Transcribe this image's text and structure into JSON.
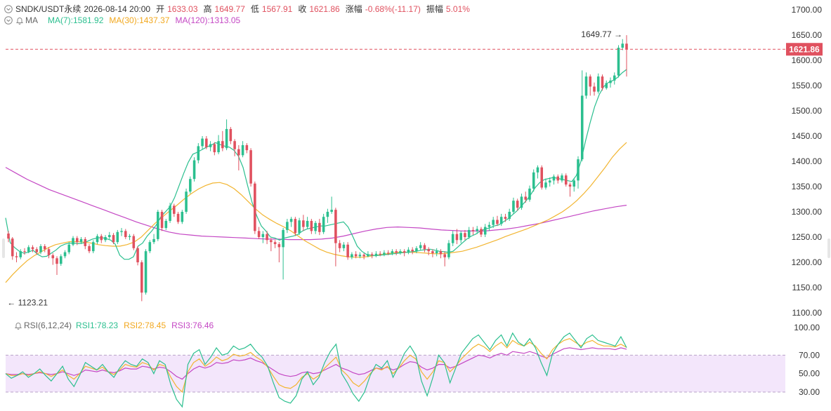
{
  "header": {
    "symbol": "SNDK/USDT永续",
    "datetime": "2026-08-14 20:00",
    "open_label": "开",
    "open": "1633.03",
    "high_label": "高",
    "high": "1649.77",
    "low_label": "低",
    "low": "1567.91",
    "close_label": "收",
    "close": "1621.86",
    "change_label": "涨幅",
    "change": "-0.68%(-11.17)",
    "amp_label": "振幅",
    "amp": "5.01%"
  },
  "ma_legend": {
    "name": "MA",
    "ma7": "MA(7):1581.92",
    "ma30": "MA(30):1437.37",
    "ma120": "MA(120):1313.05"
  },
  "rsi_legend": {
    "name": "RSI(6,12,24)",
    "rsi1": "RSI1:78.23",
    "rsi2": "RSI2:78.45",
    "rsi3": "RSI3:76.46"
  },
  "markers": {
    "high_marker": "1649.77 →",
    "low_marker": "← 1123.21",
    "last_price": "1621.86"
  },
  "colors": {
    "up": "#2bbf8f",
    "down": "#e0515f",
    "ma7": "#2bbf8f",
    "ma30": "#f2b531",
    "ma120": "#c447c4",
    "rsi1": "#2bbf8f",
    "rsi2": "#f2b531",
    "rsi3": "#c447c4",
    "rsi_band": "#f3e6fb"
  },
  "chart_data": {
    "type": "candlestick",
    "price_axis": {
      "min": 1100,
      "max": 1700,
      "ticks": [
        "1700.00",
        "1650.00",
        "1600.00",
        "1550.00",
        "1500.00",
        "1450.00",
        "1400.00",
        "1350.00",
        "1300.00",
        "1250.00",
        "1200.00",
        "1150.00",
        "1100.00"
      ]
    },
    "rsi_axis": {
      "min": 30,
      "max": 100,
      "ticks": [
        "100.00",
        "70.00",
        "50.00",
        "30.00"
      ],
      "band": [
        30,
        70
      ]
    },
    "last_price": 1621.86,
    "high_point": 1649.77,
    "low_point": 1123.21,
    "candles": [
      [
        1257,
        1247,
        1262,
        1240
      ],
      [
        1247,
        1212,
        1250,
        1205
      ],
      [
        1212,
        1210,
        1220,
        1200
      ],
      [
        1210,
        1222,
        1226,
        1206
      ],
      [
        1222,
        1221,
        1228,
        1215
      ],
      [
        1221,
        1230,
        1234,
        1218
      ],
      [
        1230,
        1226,
        1234,
        1220
      ],
      [
        1226,
        1220,
        1230,
        1215
      ],
      [
        1220,
        1232,
        1236,
        1216
      ],
      [
        1232,
        1226,
        1236,
        1220
      ],
      [
        1226,
        1214,
        1230,
        1208
      ],
      [
        1214,
        1208,
        1218,
        1195
      ],
      [
        1208,
        1197,
        1212,
        1175
      ],
      [
        1197,
        1212,
        1216,
        1193
      ],
      [
        1212,
        1220,
        1224,
        1208
      ],
      [
        1220,
        1235,
        1240,
        1216
      ],
      [
        1235,
        1248,
        1252,
        1232
      ],
      [
        1248,
        1240,
        1252,
        1234
      ],
      [
        1240,
        1246,
        1250,
        1236
      ],
      [
        1246,
        1232,
        1250,
        1226
      ],
      [
        1232,
        1222,
        1236,
        1218
      ],
      [
        1222,
        1240,
        1244,
        1218
      ],
      [
        1240,
        1252,
        1256,
        1236
      ],
      [
        1252,
        1244,
        1256,
        1238
      ],
      [
        1244,
        1250,
        1254,
        1240
      ],
      [
        1250,
        1254,
        1260,
        1246
      ],
      [
        1254,
        1240,
        1258,
        1236
      ],
      [
        1240,
        1260,
        1264,
        1236
      ],
      [
        1260,
        1262,
        1268,
        1252
      ],
      [
        1262,
        1250,
        1266,
        1246
      ],
      [
        1250,
        1252,
        1256,
        1244
      ],
      [
        1252,
        1228,
        1256,
        1224
      ],
      [
        1228,
        1200,
        1232,
        1194
      ],
      [
        1200,
        1140,
        1204,
        1123
      ],
      [
        1140,
        1222,
        1226,
        1136
      ],
      [
        1222,
        1240,
        1244,
        1218
      ],
      [
        1240,
        1246,
        1256,
        1236
      ],
      [
        1246,
        1300,
        1304,
        1242
      ],
      [
        1300,
        1268,
        1304,
        1262
      ],
      [
        1268,
        1282,
        1286,
        1264
      ],
      [
        1282,
        1312,
        1318,
        1278
      ],
      [
        1312,
        1296,
        1316,
        1290
      ],
      [
        1296,
        1280,
        1300,
        1276
      ],
      [
        1280,
        1300,
        1304,
        1276
      ],
      [
        1300,
        1340,
        1346,
        1296
      ],
      [
        1340,
        1365,
        1370,
        1336
      ],
      [
        1365,
        1402,
        1408,
        1360
      ],
      [
        1402,
        1430,
        1436,
        1396
      ],
      [
        1430,
        1445,
        1450,
        1424
      ],
      [
        1445,
        1428,
        1450,
        1424
      ],
      [
        1428,
        1434,
        1440,
        1420
      ],
      [
        1434,
        1418,
        1438,
        1412
      ],
      [
        1418,
        1440,
        1452,
        1414
      ],
      [
        1440,
        1426,
        1460,
        1420
      ],
      [
        1426,
        1464,
        1483,
        1422
      ],
      [
        1464,
        1440,
        1468,
        1434
      ],
      [
        1440,
        1424,
        1444,
        1410
      ],
      [
        1424,
        1412,
        1432,
        1382
      ],
      [
        1412,
        1432,
        1440,
        1408
      ],
      [
        1432,
        1422,
        1436,
        1416
      ],
      [
        1422,
        1356,
        1426,
        1350
      ],
      [
        1356,
        1262,
        1360,
        1256
      ],
      [
        1262,
        1250,
        1270,
        1246
      ],
      [
        1250,
        1256,
        1262,
        1238
      ],
      [
        1256,
        1244,
        1262,
        1236
      ],
      [
        1244,
        1240,
        1248,
        1222
      ],
      [
        1240,
        1236,
        1244,
        1228
      ],
      [
        1236,
        1230,
        1240,
        1200
      ],
      [
        1230,
        1264,
        1268,
        1166
      ],
      [
        1264,
        1280,
        1286,
        1258
      ],
      [
        1280,
        1286,
        1290,
        1270
      ],
      [
        1286,
        1258,
        1290,
        1252
      ],
      [
        1258,
        1283,
        1288,
        1254
      ],
      [
        1283,
        1270,
        1294,
        1262
      ],
      [
        1270,
        1282,
        1290,
        1266
      ],
      [
        1282,
        1262,
        1286,
        1256
      ],
      [
        1262,
        1278,
        1282,
        1256
      ],
      [
        1278,
        1260,
        1286,
        1254
      ],
      [
        1260,
        1290,
        1296,
        1256
      ],
      [
        1290,
        1300,
        1306,
        1278
      ],
      [
        1300,
        1304,
        1330,
        1296
      ],
      [
        1304,
        1238,
        1308,
        1192
      ],
      [
        1238,
        1228,
        1244,
        1220
      ],
      [
        1228,
        1235,
        1240,
        1222
      ],
      [
        1235,
        1210,
        1240,
        1205
      ],
      [
        1210,
        1216,
        1220,
        1206
      ],
      [
        1216,
        1212,
        1222,
        1208
      ],
      [
        1212,
        1215,
        1220,
        1208
      ],
      [
        1215,
        1212,
        1218,
        1206
      ],
      [
        1212,
        1216,
        1222,
        1210
      ],
      [
        1216,
        1214,
        1220,
        1208
      ],
      [
        1214,
        1217,
        1222,
        1210
      ],
      [
        1217,
        1216,
        1222,
        1212
      ],
      [
        1216,
        1219,
        1224,
        1212
      ],
      [
        1219,
        1218,
        1224,
        1214
      ],
      [
        1218,
        1222,
        1226,
        1214
      ],
      [
        1222,
        1219,
        1226,
        1214
      ],
      [
        1219,
        1222,
        1226,
        1215
      ],
      [
        1222,
        1219,
        1226,
        1212
      ],
      [
        1219,
        1225,
        1230,
        1216
      ],
      [
        1225,
        1222,
        1230,
        1216
      ],
      [
        1222,
        1228,
        1232,
        1218
      ],
      [
        1228,
        1234,
        1240,
        1224
      ],
      [
        1234,
        1226,
        1238,
        1220
      ],
      [
        1226,
        1222,
        1230,
        1214
      ],
      [
        1222,
        1218,
        1226,
        1210
      ],
      [
        1218,
        1222,
        1228,
        1212
      ],
      [
        1222,
        1216,
        1226,
        1208
      ],
      [
        1216,
        1210,
        1222,
        1192
      ],
      [
        1210,
        1238,
        1244,
        1206
      ],
      [
        1238,
        1256,
        1262,
        1232
      ],
      [
        1256,
        1244,
        1266,
        1236
      ],
      [
        1244,
        1258,
        1262,
        1238
      ],
      [
        1258,
        1250,
        1264,
        1244
      ],
      [
        1250,
        1264,
        1270,
        1246
      ],
      [
        1264,
        1262,
        1270,
        1254
      ],
      [
        1262,
        1266,
        1272,
        1256
      ],
      [
        1266,
        1255,
        1270,
        1250
      ],
      [
        1255,
        1270,
        1276,
        1250
      ],
      [
        1270,
        1274,
        1280,
        1262
      ],
      [
        1274,
        1284,
        1290,
        1268
      ],
      [
        1284,
        1276,
        1292,
        1272
      ],
      [
        1276,
        1290,
        1296,
        1272
      ],
      [
        1290,
        1286,
        1296,
        1280
      ],
      [
        1286,
        1300,
        1306,
        1282
      ],
      [
        1300,
        1322,
        1328,
        1296
      ],
      [
        1322,
        1308,
        1326,
        1302
      ],
      [
        1308,
        1330,
        1336,
        1304
      ],
      [
        1330,
        1324,
        1340,
        1318
      ],
      [
        1324,
        1346,
        1352,
        1320
      ],
      [
        1346,
        1378,
        1384,
        1340
      ],
      [
        1378,
        1388,
        1392,
        1366
      ],
      [
        1388,
        1348,
        1392,
        1344
      ],
      [
        1348,
        1358,
        1366,
        1344
      ],
      [
        1358,
        1362,
        1368,
        1350
      ],
      [
        1362,
        1370,
        1374,
        1354
      ],
      [
        1370,
        1362,
        1374,
        1356
      ],
      [
        1362,
        1372,
        1376,
        1358
      ],
      [
        1372,
        1354,
        1376,
        1350
      ],
      [
        1354,
        1350,
        1358,
        1330
      ],
      [
        1350,
        1362,
        1366,
        1340
      ],
      [
        1362,
        1404,
        1410,
        1346
      ],
      [
        1404,
        1530,
        1580,
        1400
      ],
      [
        1530,
        1568,
        1576,
        1524
      ],
      [
        1568,
        1548,
        1572,
        1530
      ],
      [
        1548,
        1538,
        1556,
        1530
      ],
      [
        1538,
        1568,
        1574,
        1534
      ],
      [
        1568,
        1545,
        1572,
        1540
      ],
      [
        1545,
        1555,
        1560,
        1542
      ],
      [
        1555,
        1560,
        1566,
        1546
      ],
      [
        1560,
        1570,
        1576,
        1552
      ],
      [
        1570,
        1625,
        1630,
        1566
      ],
      [
        1625,
        1633,
        1642,
        1620
      ],
      [
        1633,
        1621.86,
        1649.77,
        1567.91
      ]
    ],
    "ma7": [
      1288,
      1239,
      1229,
      1222,
      1218,
      1220,
      1224,
      1216,
      1211,
      1212,
      1218,
      1224,
      1232,
      1236,
      1238,
      1238,
      1237,
      1238,
      1242,
      1246,
      1248,
      1249,
      1247,
      1244,
      1236,
      1214,
      1206,
      1206,
      1211,
      1232,
      1238,
      1252,
      1262,
      1274,
      1290,
      1300,
      1310,
      1328,
      1352,
      1376,
      1398,
      1414,
      1418,
      1423,
      1428,
      1432,
      1437,
      1433,
      1430,
      1428,
      1422,
      1410,
      1388,
      1352,
      1318,
      1292,
      1272,
      1262,
      1250,
      1248,
      1244,
      1248,
      1250,
      1252,
      1255,
      1262,
      1266,
      1268,
      1270,
      1272,
      1272,
      1274,
      1276,
      1278,
      1280,
      1270,
      1252,
      1232,
      1222,
      1216,
      1214,
      1213,
      1214,
      1215,
      1216,
      1217,
      1218,
      1219,
      1220,
      1221,
      1222,
      1224,
      1225,
      1226,
      1224,
      1222,
      1221,
      1220,
      1222,
      1230,
      1238,
      1246,
      1252,
      1256,
      1262,
      1266,
      1268,
      1272,
      1274,
      1280,
      1286,
      1294,
      1302,
      1312,
      1322,
      1334,
      1348,
      1358,
      1364,
      1366,
      1368,
      1366,
      1364,
      1362,
      1360,
      1372,
      1400,
      1440,
      1476,
      1508,
      1532,
      1548,
      1556,
      1560,
      1566,
      1575,
      1581.92
    ],
    "ma30": [
      1160,
      1176,
      1190,
      1203,
      1213,
      1221,
      1229,
      1235,
      1238,
      1241,
      1241,
      1240,
      1238,
      1235,
      1233,
      1232,
      1232,
      1235,
      1240,
      1250,
      1264,
      1278,
      1290,
      1302,
      1313,
      1325,
      1336,
      1345,
      1352,
      1357,
      1358,
      1354,
      1346,
      1334,
      1320,
      1306,
      1294,
      1285,
      1277,
      1270,
      1262,
      1252,
      1242,
      1234,
      1226,
      1220,
      1216,
      1213,
      1211,
      1210,
      1210,
      1212,
      1214,
      1216,
      1218,
      1220,
      1220,
      1220,
      1219,
      1218,
      1217,
      1217,
      1218,
      1220,
      1222,
      1226,
      1230,
      1235,
      1240,
      1245,
      1251,
      1256,
      1261,
      1266,
      1272,
      1278,
      1284,
      1292,
      1300,
      1310,
      1322,
      1336,
      1352,
      1370,
      1388,
      1408,
      1424,
      1437.37
    ],
    "ma120": [
      1388,
      1376,
      1364,
      1354,
      1344,
      1336,
      1328,
      1320,
      1312,
      1304,
      1296,
      1288,
      1280,
      1273,
      1266,
      1260,
      1256,
      1254,
      1252,
      1251,
      1250,
      1249,
      1248,
      1247,
      1246,
      1246,
      1245,
      1245,
      1245,
      1246,
      1248,
      1252,
      1257,
      1262,
      1266,
      1269,
      1270,
      1269,
      1268,
      1266,
      1264,
      1263,
      1262,
      1262,
      1262,
      1264,
      1266,
      1269,
      1273,
      1277,
      1282,
      1287,
      1292,
      1297,
      1302,
      1306,
      1310,
      1313.05
    ],
    "rsi1": [
      50,
      45,
      48,
      52,
      46,
      50,
      55,
      48,
      42,
      50,
      58,
      44,
      36,
      48,
      62,
      58,
      54,
      60,
      52,
      46,
      56,
      64,
      60,
      58,
      66,
      62,
      50,
      64,
      60,
      38,
      22,
      14,
      60,
      72,
      76,
      60,
      68,
      78,
      70,
      72,
      80,
      76,
      78,
      82,
      74,
      68,
      58,
      40,
      24,
      20,
      18,
      26,
      44,
      52,
      38,
      46,
      62,
      74,
      82,
      50,
      40,
      28,
      20,
      30,
      48,
      60,
      56,
      64,
      46,
      58,
      72,
      80,
      70,
      42,
      26,
      46,
      70,
      62,
      40,
      56,
      72,
      80,
      88,
      92,
      84,
      76,
      86,
      92,
      80,
      94,
      84,
      80,
      88,
      78,
      62,
      48,
      72,
      82,
      90,
      94,
      86,
      78,
      88,
      92,
      86,
      84,
      82,
      80,
      90,
      78.23
    ],
    "rsi2": [
      50,
      48,
      48,
      50,
      48,
      50,
      52,
      50,
      47,
      50,
      54,
      48,
      44,
      50,
      58,
      56,
      54,
      57,
      52,
      49,
      54,
      60,
      58,
      57,
      62,
      60,
      54,
      60,
      58,
      46,
      36,
      30,
      52,
      62,
      66,
      58,
      62,
      68,
      64,
      66,
      71,
      69,
      70,
      73,
      68,
      64,
      57,
      47,
      38,
      35,
      34,
      38,
      46,
      50,
      44,
      48,
      56,
      62,
      68,
      54,
      48,
      40,
      36,
      42,
      50,
      56,
      54,
      58,
      50,
      56,
      64,
      70,
      66,
      52,
      44,
      52,
      64,
      62,
      52,
      58,
      66,
      72,
      78,
      82,
      79,
      74,
      80,
      84,
      78,
      86,
      82,
      80,
      84,
      80,
      72,
      66,
      76,
      82,
      86,
      88,
      84,
      80,
      84,
      86,
      82,
      80,
      80,
      79,
      82,
      78.45
    ],
    "rsi3": [
      50,
      49,
      49,
      50,
      49,
      50,
      51,
      50,
      49,
      50,
      52,
      50,
      48,
      50,
      54,
      53,
      52,
      54,
      52,
      51,
      53,
      56,
      55,
      55,
      58,
      57,
      55,
      57,
      56,
      52,
      47,
      44,
      50,
      55,
      58,
      56,
      58,
      62,
      61,
      62,
      65,
      64,
      65,
      67,
      64,
      62,
      58,
      54,
      50,
      48,
      47,
      48,
      51,
      52,
      50,
      51,
      54,
      57,
      60,
      56,
      54,
      51,
      49,
      50,
      53,
      56,
      55,
      57,
      54,
      56,
      60,
      63,
      62,
      57,
      54,
      56,
      60,
      60,
      56,
      58,
      61,
      64,
      67,
      70,
      69,
      67,
      70,
      72,
      70,
      74,
      73,
      72,
      74,
      72,
      69,
      67,
      71,
      74,
      77,
      78,
      77,
      76,
      77,
      78,
      77,
      77,
      77,
      76,
      78,
      76.46
    ]
  }
}
